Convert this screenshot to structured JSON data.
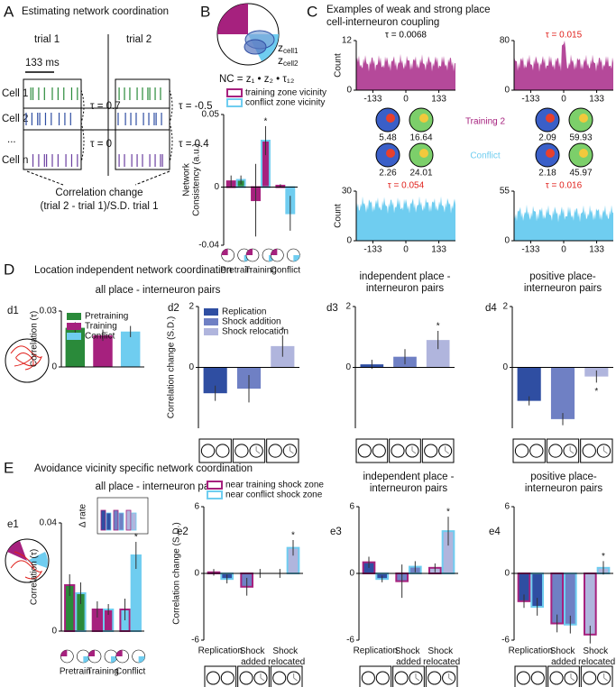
{
  "panel_a": {
    "label": "A",
    "title": "Estimating network coordination",
    "trial1": "trial 1",
    "trial2": "trial 2",
    "scale": "133 ms",
    "cells": [
      "Cell 1",
      "Cell 2",
      "...",
      "Cell n"
    ],
    "taus": [
      "τ = 0.7",
      "τ = 0",
      "τ = -0.5",
      "τ = 0.4"
    ],
    "caption": [
      "Correlation change",
      "(trial 2 - trial 1)/S.D. trial 1"
    ]
  },
  "panel_b": {
    "label": "B",
    "formula": "NC = z₁ • z₂ • τ₁₂",
    "cell_labels": [
      {
        "z": "z",
        "sub": "cell1"
      },
      {
        "z": "z",
        "sub": "cell2"
      }
    ]
  },
  "panel_c": {
    "label": "C",
    "title": [
      "Examples of weak and strong place",
      "cell-interneuron coupling"
    ],
    "histograms": [
      {
        "tau": "τ = 0.0068",
        "tau_color": "#000000",
        "ylabel": "Count",
        "ylim": [
          0,
          12
        ],
        "yticks": [
          0,
          12
        ],
        "xlim": [
          -200,
          200
        ],
        "xticks": [
          -133,
          0,
          133
        ],
        "color": "#b5499a"
      },
      {
        "tau": "τ = 0.015",
        "tau_color": "#e0201b",
        "ylim": [
          0,
          80
        ],
        "yticks": [
          0,
          80
        ],
        "xlim": [
          -200,
          200
        ],
        "xticks": [
          -133,
          0,
          133
        ],
        "color": "#b5499a"
      },
      {
        "tau": "τ = 0.054",
        "tau_color": "#e0201b",
        "ylabel": "Count",
        "ylim": [
          0,
          30
        ],
        "yticks": [
          0,
          30
        ],
        "xlim": [
          -200,
          200
        ],
        "xticks": [
          -133,
          0,
          133
        ],
        "color": "#6fcdf0"
      },
      {
        "tau": "τ = 0.016",
        "tau_color": "#e0201b",
        "ylim": [
          0,
          55
        ],
        "yticks": [
          0,
          55
        ],
        "xlim": [
          -200,
          200
        ],
        "xticks": [
          -133,
          0,
          133
        ],
        "color": "#6fcdf0"
      }
    ],
    "rates": [
      "5.48",
      "16.64",
      "2.09",
      "59.93",
      "2.26",
      "24.01",
      "2.18",
      "45.97"
    ],
    "conditions": [
      {
        "name": "Training 2",
        "color": "#a6217e"
      },
      {
        "name": "Conflict",
        "color": "#6fcdf0"
      }
    ]
  },
  "panel_d": {
    "label": "D",
    "title": "Location independent  network coordination",
    "subtitle": "all place - interneuron pairs"
  },
  "panel_e": {
    "label": "E",
    "title": "Avoidance vicinity specific network coordination",
    "subtitle": "all place - interneuron pairs",
    "inset": "Δ rate"
  },
  "chart_data": [
    {
      "type": "bar",
      "ylabel": [
        "Network",
        "Consistency (a.u.)"
      ],
      "categories": [
        "Pretrain",
        "Training",
        "Conflict"
      ],
      "legend": "above",
      "ylim": [
        -0.04,
        0.05
      ],
      "yticks": [
        -0.04,
        0,
        0.05
      ],
      "series": [
        {
          "name": "training zone vicinity",
          "color": "#a6217e",
          "fills": [
            "#a6217e",
            "#a6217e",
            "#a6217e"
          ],
          "values": [
            0.004,
            -0.009,
            0.001
          ],
          "errors": [
            0.004,
            0.025,
            0.001
          ]
        },
        {
          "name": "conflict zone vicinity",
          "color": "#6fcdf0",
          "fills": [
            "#2a8a3a",
            "#a6217e",
            "#6fcdf0"
          ],
          "values": [
            0.005,
            0.032,
            -0.018
          ],
          "errors": [
            0.003,
            0.01,
            0.012
          ]
        }
      ],
      "annotations": [
        {
          "text": "*",
          "series": 1,
          "index": 1
        }
      ]
    },
    {
      "type": "bar",
      "panel": "d1",
      "ylabel": [
        "Correlation (τ)"
      ],
      "categories": [
        "Pretraining",
        "Training",
        "Conflict"
      ],
      "legend": "top left",
      "colors": [
        "#2a8a3a",
        "#a6217e",
        "#6fcdf0"
      ],
      "values": [
        0.021,
        0.017,
        0.019
      ],
      "errors": [
        0.003,
        0.003,
        0.003
      ],
      "ylim": [
        0,
        0.03
      ],
      "yticks": [
        0,
        0.03
      ]
    },
    {
      "type": "bar",
      "panel": "d2",
      "ylabel": [
        "Correlation change (S.D.)"
      ],
      "categories": [
        "Replication",
        "Shock addition",
        "Shock relocation"
      ],
      "legend": "top left",
      "colors": [
        "#2f4ea2",
        "#6f80c4",
        "#b0b5dd"
      ],
      "values": [
        -0.85,
        -0.7,
        0.7
      ],
      "errors": [
        0.25,
        0.45,
        0.35
      ],
      "ylim": [
        -2,
        2
      ],
      "yticks": [
        0,
        2
      ],
      "annotations": [
        {
          "text": "*",
          "index": 2
        }
      ]
    },
    {
      "type": "bar",
      "panel": "d3",
      "subtitle": [
        "independent place -",
        "interneuron pairs"
      ],
      "colors": [
        "#2f4ea2",
        "#6f80c4",
        "#b0b5dd"
      ],
      "values": [
        0.1,
        0.35,
        0.9
      ],
      "errors": [
        0.15,
        0.25,
        0.3
      ],
      "ylim": [
        -2,
        2
      ],
      "yticks": [
        0,
        2
      ],
      "annotations": [
        {
          "text": "*",
          "index": 2
        }
      ]
    },
    {
      "type": "bar",
      "panel": "d4",
      "subtitle": [
        "positive place-",
        "interneuron pairs"
      ],
      "colors": [
        "#2f4ea2",
        "#6f80c4",
        "#b0b5dd"
      ],
      "values": [
        -1.1,
        -1.7,
        -0.3
      ],
      "errors": [
        0.15,
        0.2,
        0.2
      ],
      "ylim": [
        -2,
        2
      ],
      "yticks": [
        0,
        2
      ],
      "annotations": [
        {
          "text": "*",
          "index": 2
        }
      ]
    },
    {
      "type": "bar",
      "panel": "e1",
      "ylabel": [
        "Correlation (τ)"
      ],
      "categories": [
        "Pretrain",
        "Training",
        "Conflict"
      ],
      "ylim": [
        0,
        0.04
      ],
      "yticks": [
        0,
        0.04
      ],
      "series": [
        {
          "color": "#a6217e",
          "fills": [
            "#2a8a3a",
            "#a6217e",
            "#6fcdf0"
          ],
          "values": [
            0.017,
            0.008,
            0.008
          ],
          "errors": [
            0.004,
            0.003,
            0.004
          ]
        },
        {
          "color": "#6fcdf0",
          "fills": [
            "#2a8a3a",
            "#a6217e",
            "#6fcdf0"
          ],
          "values": [
            0.014,
            0.008,
            0.028
          ],
          "errors": [
            0.004,
            0.002,
            0.005
          ]
        }
      ],
      "annotations": [
        {
          "text": "*",
          "series": 1,
          "index": 2
        }
      ]
    },
    {
      "type": "bar",
      "panel": "e2",
      "ylabel": [
        "Correlation change (S.D.)"
      ],
      "categories": [
        "Replication",
        "Shock added",
        "Shock relocated"
      ],
      "legend": "above",
      "ylim": [
        -6,
        6
      ],
      "yticks": [
        -6,
        0,
        6
      ],
      "series": [
        {
          "name": "near training shock zone",
          "color": "#a6217e",
          "fills": [
            "#2f4ea2",
            "#6f80c4",
            "#b0b5dd"
          ],
          "values": [
            0.1,
            -1.2,
            0.0
          ],
          "errors": [
            0.3,
            0.8,
            0.4
          ]
        },
        {
          "name": "near conflict shock zone",
          "color": "#6fcdf0",
          "fills": [
            "#2f4ea2",
            "#6f80c4",
            "#b0b5dd"
          ],
          "values": [
            -0.5,
            0.0,
            2.3
          ],
          "errors": [
            0.4,
            0.4,
            0.7
          ]
        }
      ],
      "annotations": [
        {
          "text": "*",
          "series": 1,
          "index": 2
        }
      ]
    },
    {
      "type": "bar",
      "panel": "e3",
      "subtitle": [
        "independent place -",
        "interneuron pairs"
      ],
      "categories": [
        "Replication",
        "Shock added",
        "Shock relocated"
      ],
      "ylim": [
        -6,
        6
      ],
      "yticks": [
        -6,
        0,
        6
      ],
      "series": [
        {
          "color": "#a6217e",
          "fills": [
            "#2f4ea2",
            "#6f80c4",
            "#b0b5dd"
          ],
          "values": [
            1.0,
            -0.7,
            0.5
          ],
          "errors": [
            0.5,
            1.5,
            0.4
          ]
        },
        {
          "color": "#6fcdf0",
          "fills": [
            "#2f4ea2",
            "#6f80c4",
            "#b0b5dd"
          ],
          "values": [
            -0.5,
            0.6,
            3.8
          ],
          "errors": [
            0.3,
            0.5,
            1.3
          ]
        }
      ],
      "annotations": [
        {
          "text": "*",
          "series": 1,
          "index": 2
        }
      ]
    },
    {
      "type": "bar",
      "panel": "e4",
      "subtitle": [
        "positive place-",
        "interneuron pairs"
      ],
      "categories": [
        "Replication",
        "Shock added",
        "Shock relocated"
      ],
      "ylim": [
        -6,
        6
      ],
      "yticks": [
        -6,
        0,
        6
      ],
      "series": [
        {
          "color": "#a6217e",
          "fills": [
            "#2f4ea2",
            "#6f80c4",
            "#b0b5dd"
          ],
          "values": [
            -2.5,
            -4.5,
            -5.5
          ],
          "errors": [
            0.6,
            0.8,
            0.8
          ]
        },
        {
          "color": "#6fcdf0",
          "fills": [
            "#2f4ea2",
            "#6f80c4",
            "#b0b5dd"
          ],
          "values": [
            -3.0,
            -4.6,
            0.5
          ],
          "errors": [
            0.8,
            0.8,
            0.6
          ]
        }
      ],
      "annotations": [
        {
          "text": "*",
          "series": 1,
          "index": 2
        }
      ]
    }
  ]
}
